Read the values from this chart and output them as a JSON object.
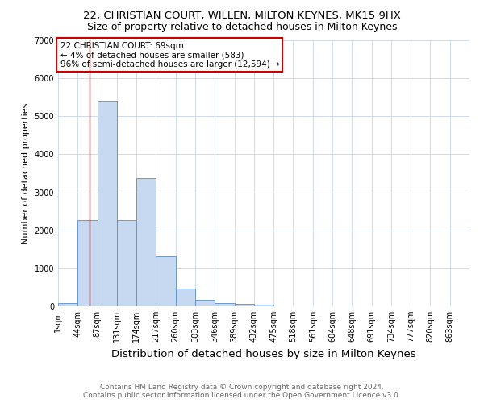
{
  "title": "22, CHRISTIAN COURT, WILLEN, MILTON KEYNES, MK15 9HX",
  "subtitle": "Size of property relative to detached houses in Milton Keynes",
  "xlabel": "Distribution of detached houses by size in Milton Keynes",
  "ylabel": "Number of detached properties",
  "categories": [
    "1sqm",
    "44sqm",
    "87sqm",
    "131sqm",
    "174sqm",
    "217sqm",
    "260sqm",
    "303sqm",
    "346sqm",
    "389sqm",
    "432sqm",
    "475sqm",
    "518sqm",
    "561sqm",
    "604sqm",
    "648sqm",
    "691sqm",
    "734sqm",
    "777sqm",
    "820sqm",
    "863sqm"
  ],
  "bar_values": [
    75,
    2280,
    5400,
    2280,
    3380,
    1310,
    460,
    175,
    80,
    55,
    35,
    10,
    5,
    3,
    2,
    1,
    1,
    0,
    0,
    0,
    0
  ],
  "bar_color": "#c6d9f1",
  "bar_edge_color": "#5b8cc8",
  "ylim": [
    0,
    7000
  ],
  "property_line_x": 1.62,
  "property_line_color": "#990000",
  "annotation_text": "22 CHRISTIAN COURT: 69sqm\n← 4% of detached houses are smaller (583)\n96% of semi-detached houses are larger (12,594) →",
  "annotation_box_color": "#ffffff",
  "annotation_box_edge": "#cc0000",
  "footer_line1": "Contains HM Land Registry data © Crown copyright and database right 2024.",
  "footer_line2": "Contains public sector information licensed under the Open Government Licence v3.0.",
  "background_color": "#ffffff",
  "grid_color": "#c8d4e8",
  "title_fontsize": 9.5,
  "subtitle_fontsize": 9,
  "xlabel_fontsize": 9.5,
  "ylabel_fontsize": 8,
  "tick_fontsize": 7,
  "annotation_fontsize": 7.5,
  "footer_fontsize": 6.5
}
